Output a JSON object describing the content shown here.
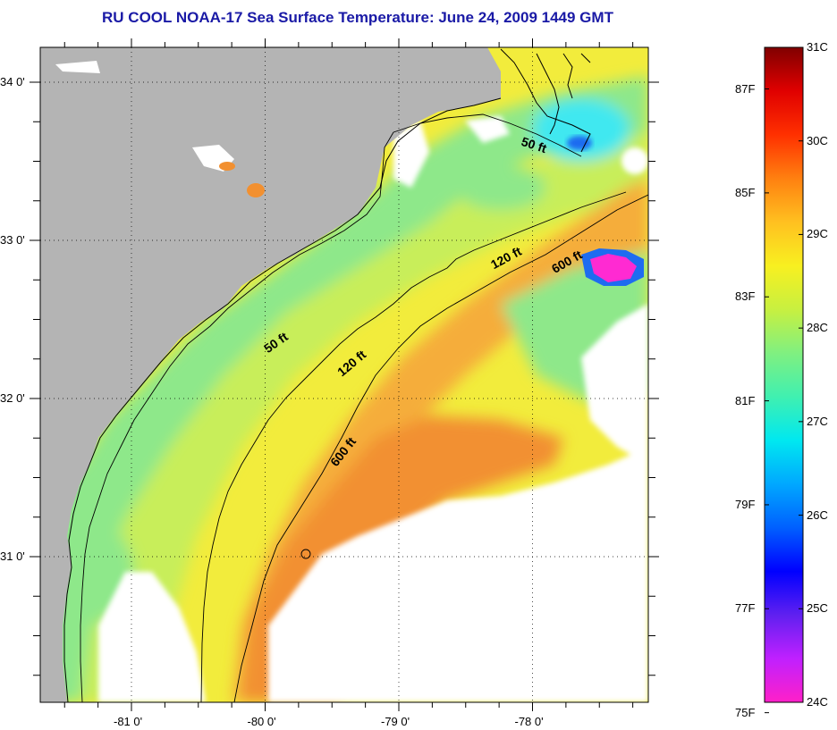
{
  "title": "RU COOL  NOAA-17  Sea Surface Temperature:  June 24, 2009 1449 GMT",
  "map": {
    "lon_ticks": [
      {
        "label": "-81 0'",
        "lon": -81
      },
      {
        "label": "-80 0'",
        "lon": -80
      },
      {
        "label": "-79 0'",
        "lon": -79
      },
      {
        "label": "-78 0'",
        "lon": -78
      }
    ],
    "lat_ticks": [
      {
        "label": "34 0'",
        "lat": 34
      },
      {
        "label": "33 0'",
        "lat": 33
      },
      {
        "label": "32 0'",
        "lat": 32
      },
      {
        "label": "31 0'",
        "lat": 31
      }
    ],
    "contours": [
      {
        "label": "50 ft"
      },
      {
        "label": "50 ft"
      },
      {
        "label": "120 ft"
      },
      {
        "label": "120 ft"
      },
      {
        "label": "600 ft"
      },
      {
        "label": "600 ft"
      }
    ],
    "colors": {
      "land": "#b4b4b4",
      "cloud": "#ffffff",
      "warm_orange": "#f29030",
      "orange": "#f5ad3a",
      "yellow": "#f2ec3c",
      "yellow_green": "#c8ee5a",
      "green": "#8ee88a",
      "cyan": "#40e8f0",
      "blue": "#1e6cf0",
      "magenta": "#ff2ad2"
    }
  },
  "colorbar": {
    "celsius_labels": [
      "31C",
      "30C",
      "29C",
      "28C",
      "27C",
      "26C",
      "25C",
      "24C"
    ],
    "fahrenheit_labels": [
      "87F",
      "85F",
      "83F",
      "81F",
      "79F",
      "77F",
      "75F"
    ],
    "range_c": [
      24,
      31
    ],
    "colors": [
      "#ff20c8",
      "#c020ff",
      "#6020f0",
      "#0000ff",
      "#0060ff",
      "#00a8ff",
      "#00e8f0",
      "#40f0b0",
      "#80f080",
      "#c8f040",
      "#f8f020",
      "#ffc020",
      "#ff8010",
      "#ff3000",
      "#e00000",
      "#800000"
    ]
  }
}
